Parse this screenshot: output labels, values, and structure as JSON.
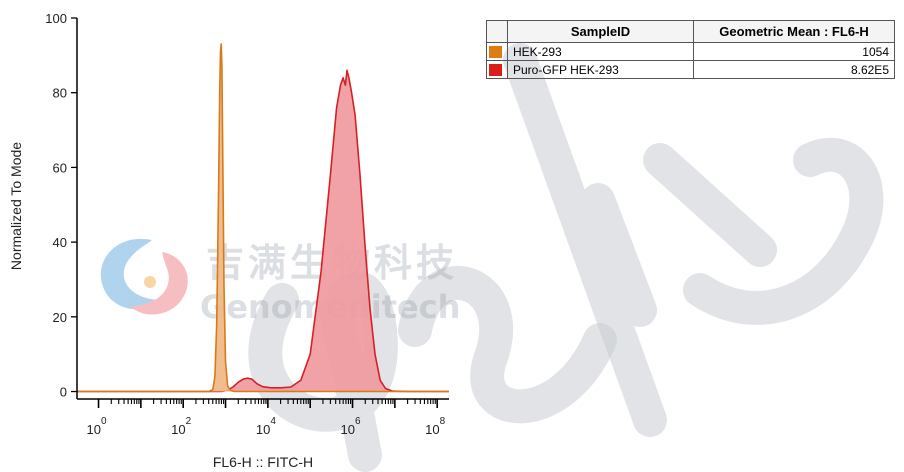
{
  "chart_data": {
    "type": "area",
    "title": "",
    "xlabel": "FL6-H :: FITC-H",
    "ylabel": "Normalized To Mode",
    "xscale": "log",
    "xlim": [
      0.31,
      190000000
    ],
    "ylim": [
      -2,
      100
    ],
    "x_tick_labels": [
      {
        "base": "10",
        "exp": "0",
        "value": 1
      },
      {
        "base": "10",
        "exp": "2",
        "value": 100
      },
      {
        "base": "10",
        "exp": "4",
        "value": 10000
      },
      {
        "base": "10",
        "exp": "6",
        "value": 1000000
      },
      {
        "base": "10",
        "exp": "8",
        "value": 100000000
      }
    ],
    "y_ticks": [
      0,
      20,
      40,
      60,
      80,
      100
    ],
    "grid": false,
    "series": [
      {
        "name": "HEK-293",
        "color": "#d97a17",
        "fill": "#efb784",
        "points": [
          [
            0.31,
            0
          ],
          [
            400,
            0
          ],
          [
            500,
            0.5
          ],
          [
            560,
            4
          ],
          [
            620,
            18
          ],
          [
            680,
            50
          ],
          [
            730,
            80
          ],
          [
            760,
            91
          ],
          [
            790,
            93
          ],
          [
            820,
            87
          ],
          [
            860,
            62
          ],
          [
            920,
            28
          ],
          [
            1000,
            8
          ],
          [
            1120,
            1.5
          ],
          [
            1300,
            0.3
          ],
          [
            1600,
            0
          ],
          [
            190000000,
            0
          ]
        ]
      },
      {
        "name": "Puro-GFP HEK-293",
        "color": "#d62025",
        "fill": "#f09aa0",
        "points": [
          [
            0.31,
            0
          ],
          [
            800,
            0
          ],
          [
            1100,
            0.3
          ],
          [
            1500,
            1.2
          ],
          [
            2000,
            2.5
          ],
          [
            2600,
            3.3
          ],
          [
            3300,
            3.6
          ],
          [
            4200,
            3.3
          ],
          [
            5500,
            2.1
          ],
          [
            7500,
            1.3
          ],
          [
            12000,
            1
          ],
          [
            20000,
            1
          ],
          [
            35000,
            1.2
          ],
          [
            60000,
            3
          ],
          [
            100000,
            10
          ],
          [
            180000,
            32
          ],
          [
            300000,
            58
          ],
          [
            420000,
            76
          ],
          [
            520000,
            82
          ],
          [
            600000,
            84
          ],
          [
            680000,
            82
          ],
          [
            740000,
            86
          ],
          [
            820000,
            84
          ],
          [
            950000,
            80
          ],
          [
            1150000,
            74
          ],
          [
            1500000,
            58
          ],
          [
            2000000,
            38
          ],
          [
            2600000,
            22
          ],
          [
            3400000,
            10
          ],
          [
            4500000,
            3
          ],
          [
            6000000,
            0.8
          ],
          [
            9000000,
            0.1
          ],
          [
            20000000,
            0
          ],
          [
            190000000,
            0
          ]
        ]
      }
    ]
  },
  "legend_table": {
    "headers": [
      "",
      "SampleID",
      "Geometric Mean : FL6-H"
    ],
    "rows": [
      {
        "swatch_color": "#e07b13",
        "sample_id": "HEK-293",
        "value": "1054"
      },
      {
        "swatch_color": "#dd1c1c",
        "sample_id": "Puro-GFP HEK-293",
        "value": "8.62E5"
      }
    ]
  },
  "watermark": {
    "cn_text": "吉满生物科技",
    "en_text": "Genomeditech"
  }
}
